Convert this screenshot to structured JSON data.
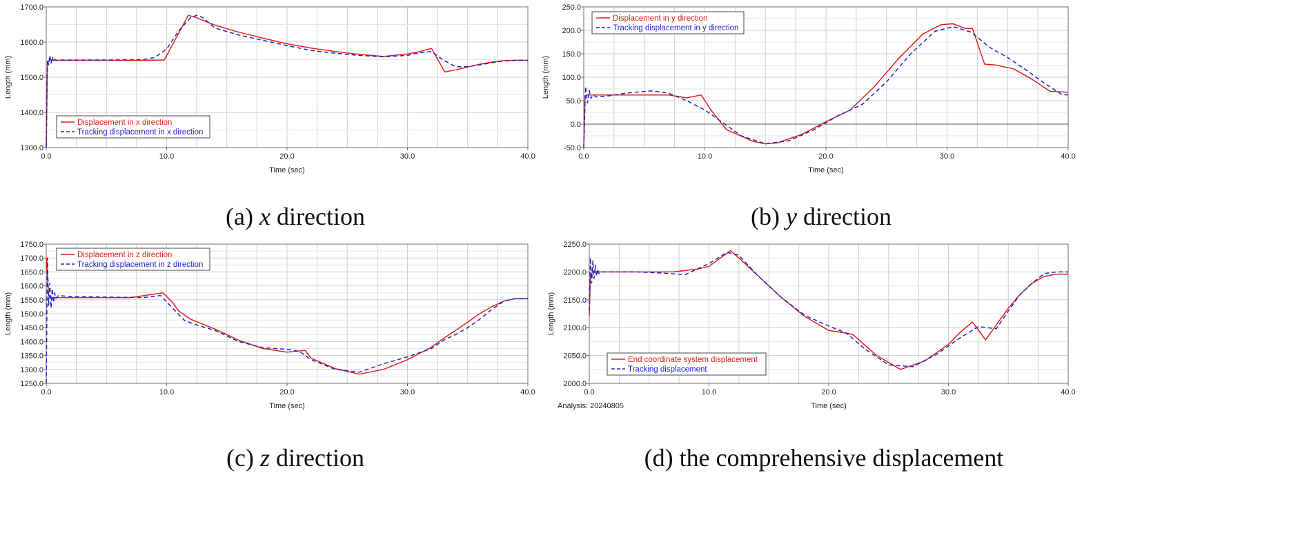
{
  "colors": {
    "actual": "#e0201b",
    "tracking": "#2323c8",
    "grid": "#cfcfcf",
    "axis": "#6d6d6d"
  },
  "analysis_note": "Analysis:  20240805",
  "chart_data": [
    {
      "type": "line",
      "caption_prefix": "(a) ",
      "caption_var": "x",
      "caption_suffix": " direction",
      "xlabel": "Time (sec)",
      "ylabel": "Length (mm)",
      "xlim": [
        0,
        40
      ],
      "ylim": [
        1300,
        1700
      ],
      "xticks": [
        "0.0",
        "10.0",
        "20.0",
        "30.0",
        "40.0"
      ],
      "yticks": [
        "1300.0",
        "1400.0",
        "1500.0",
        "1600.0",
        "1700.0"
      ],
      "legend_position": "bottom-left",
      "series": [
        {
          "name": "Displacement in x direction",
          "style": "solid",
          "x": [
            0,
            0.1,
            0.3,
            0.6,
            2,
            5,
            8,
            9.8,
            11.8,
            12.5,
            14,
            16,
            18,
            20,
            22,
            24,
            26,
            28,
            30,
            31,
            32,
            33.1,
            34,
            35,
            36,
            37,
            38,
            39,
            40
          ],
          "y": [
            1300,
            1540,
            1549,
            1548,
            1548,
            1548,
            1548,
            1549,
            1676,
            1669,
            1648,
            1628,
            1611,
            1595,
            1583,
            1573,
            1565,
            1559,
            1566,
            1573,
            1582,
            1515,
            1521,
            1529,
            1537,
            1543,
            1547,
            1548,
            1548
          ]
        },
        {
          "name": "Tracking displacement in x direction",
          "style": "dashed",
          "x": [
            0,
            0.1,
            0.2,
            0.3,
            0.4,
            0.5,
            0.6,
            0.7,
            0.8,
            1.0,
            2,
            5,
            8,
            9,
            10,
            11,
            12,
            12.5,
            13,
            14,
            16,
            18,
            20,
            22,
            24,
            26,
            28,
            30,
            31,
            32,
            33,
            34,
            35,
            36,
            37,
            38,
            39,
            40
          ],
          "y": [
            1300,
            1550,
            1535,
            1562,
            1540,
            1558,
            1545,
            1552,
            1548,
            1549,
            1549,
            1549,
            1550,
            1556,
            1580,
            1632,
            1670,
            1676,
            1670,
            1640,
            1620,
            1605,
            1590,
            1576,
            1568,
            1562,
            1558,
            1562,
            1570,
            1573,
            1548,
            1530,
            1530,
            1535,
            1541,
            1546,
            1548,
            1548
          ]
        }
      ]
    },
    {
      "type": "line",
      "caption_prefix": "(b) ",
      "caption_var": "y",
      "caption_suffix": " direction",
      "xlabel": "Time (sec)",
      "ylabel": "Length (mm)",
      "xlim": [
        0,
        40
      ],
      "ylim": [
        -50,
        250
      ],
      "xticks": [
        "0.0",
        "10.0",
        "20.0",
        "30.0",
        "40.0"
      ],
      "yticks": [
        "-50.0",
        "0.0",
        "50.0",
        "100.0",
        "150.0",
        "200.0",
        "250.0"
      ],
      "legend_position": "top-left",
      "series": [
        {
          "name": "Displacement in y direction",
          "style": "solid",
          "x": [
            0,
            0.1,
            0.3,
            0.6,
            2,
            5,
            7,
            8.5,
            9.7,
            10.5,
            11.8,
            12.5,
            14,
            15,
            16,
            18,
            20,
            22,
            24,
            26,
            28,
            29.5,
            30.5,
            31.5,
            32.1,
            33.1,
            34,
            35.5,
            37,
            38.5,
            40
          ],
          "y": [
            -50,
            60,
            62,
            62,
            62,
            62,
            62,
            56,
            62,
            30,
            -12,
            -20,
            -37,
            -42,
            -40,
            -22,
            5,
            30,
            80,
            140,
            192,
            212,
            214,
            204,
            204,
            128,
            126,
            118,
            96,
            70,
            68
          ]
        },
        {
          "name": "Tracking displacement in y direction",
          "style": "dashed",
          "x": [
            0,
            0.15,
            0.3,
            0.45,
            0.6,
            0.8,
            1,
            2,
            3.5,
            5.5,
            7,
            8.5,
            10,
            11.5,
            13,
            15,
            17,
            19,
            21,
            23,
            25,
            27,
            29,
            30.5,
            32,
            33.5,
            35,
            36.5,
            38,
            39.5,
            40
          ],
          "y": [
            -50,
            80,
            45,
            72,
            55,
            62,
            58,
            60,
            66,
            71,
            66,
            50,
            30,
            3,
            -25,
            -42,
            -35,
            -12,
            18,
            42,
            90,
            150,
            198,
            208,
            196,
            164,
            142,
            116,
            88,
            63,
            62
          ]
        }
      ]
    },
    {
      "type": "line",
      "caption_prefix": "(c) ",
      "caption_var": "z",
      "caption_suffix": " direction",
      "xlabel": "Time (sec)",
      "ylabel": "Length (mm)",
      "xlim": [
        0,
        40
      ],
      "ylim": [
        1250,
        1750
      ],
      "xticks": [
        "0.0",
        "10.0",
        "20.0",
        "30.0",
        "40.0"
      ],
      "yticks": [
        "1250.0",
        "1300.0",
        "1350.0",
        "1400.0",
        "1450.0",
        "1500.0",
        "1550.0",
        "1600.0",
        "1650.0",
        "1700.0",
        "1750.0"
      ],
      "legend_position": "top-left",
      "series": [
        {
          "name": "Displacement in z direction",
          "style": "solid",
          "x": [
            0,
            0.2,
            0.5,
            1,
            3,
            5,
            7,
            9.7,
            10.5,
            11,
            12,
            14,
            16,
            18,
            20,
            21.5,
            22,
            24,
            26,
            28,
            30,
            32,
            33,
            34,
            35,
            36,
            37,
            38,
            39,
            40
          ],
          "y": [
            1700,
            1565,
            1558,
            1558,
            1558,
            1558,
            1558,
            1575,
            1540,
            1510,
            1480,
            1445,
            1405,
            1375,
            1362,
            1368,
            1340,
            1303,
            1283,
            1300,
            1335,
            1380,
            1412,
            1440,
            1470,
            1500,
            1525,
            1545,
            1555,
            1555
          ]
        },
        {
          "name": "Tracking displacement in z direction",
          "style": "dashed",
          "x": [
            0,
            0.1,
            0.2,
            0.3,
            0.4,
            0.5,
            0.6,
            0.7,
            0.8,
            1.0,
            2,
            5,
            8,
            9.5,
            10.5,
            11.5,
            12.5,
            14,
            16,
            18,
            20,
            21,
            22,
            24,
            26,
            28,
            30,
            32,
            33,
            34,
            35,
            36,
            37,
            38,
            39,
            40
          ],
          "y": [
            1250,
            1700,
            1530,
            1610,
            1520,
            1590,
            1540,
            1575,
            1555,
            1565,
            1562,
            1560,
            1558,
            1565,
            1520,
            1475,
            1460,
            1440,
            1400,
            1378,
            1372,
            1365,
            1335,
            1300,
            1290,
            1320,
            1345,
            1375,
            1405,
            1425,
            1450,
            1480,
            1515,
            1545,
            1555,
            1555
          ]
        }
      ]
    },
    {
      "type": "line",
      "caption_prefix": "(d) ",
      "caption_var": "",
      "caption_suffix": "the comprehensive displacement",
      "xlabel": "Time (sec)",
      "ylabel": "Length (mm)",
      "xlim": [
        0,
        40
      ],
      "ylim": [
        2000,
        2250
      ],
      "xticks": [
        "0.0",
        "10.0",
        "20.0",
        "30.0",
        "40.0"
      ],
      "yticks": [
        "2000.0",
        "2050.0",
        "2100.0",
        "2150.0",
        "2200.0",
        "2250.0"
      ],
      "legend_position": "bottom-left",
      "series": [
        {
          "name": "End coordinate system displacement",
          "style": "solid",
          "x": [
            0,
            0.1,
            0.3,
            0.6,
            2,
            5,
            7,
            9,
            10,
            11.8,
            12.5,
            14,
            16,
            18,
            20,
            21.5,
            22,
            24,
            26,
            28,
            30,
            31,
            32,
            33.1,
            34,
            35,
            36,
            37,
            38,
            39,
            40
          ],
          "y": [
            2120,
            2195,
            2200,
            2200,
            2200,
            2200,
            2200,
            2205,
            2210,
            2238,
            2225,
            2195,
            2155,
            2120,
            2095,
            2090,
            2088,
            2050,
            2025,
            2040,
            2070,
            2092,
            2110,
            2078,
            2105,
            2135,
            2160,
            2180,
            2192,
            2196,
            2196
          ]
        },
        {
          "name": "Tracking displacement",
          "style": "dashed",
          "x": [
            0,
            0.1,
            0.2,
            0.3,
            0.4,
            0.5,
            0.6,
            0.7,
            0.8,
            1.0,
            2,
            4,
            6,
            8,
            10,
            11.5,
            12.5,
            14,
            16,
            18,
            20,
            21.5,
            23,
            25,
            27,
            29,
            31,
            32.5,
            34,
            35,
            36,
            37,
            38,
            39,
            40
          ],
          "y": [
            2130,
            2225,
            2180,
            2220,
            2188,
            2212,
            2192,
            2205,
            2197,
            2200,
            2200,
            2200,
            2198,
            2195,
            2215,
            2235,
            2230,
            2195,
            2155,
            2122,
            2103,
            2090,
            2062,
            2033,
            2030,
            2052,
            2082,
            2102,
            2098,
            2130,
            2160,
            2180,
            2197,
            2200,
            2200
          ]
        }
      ]
    }
  ]
}
